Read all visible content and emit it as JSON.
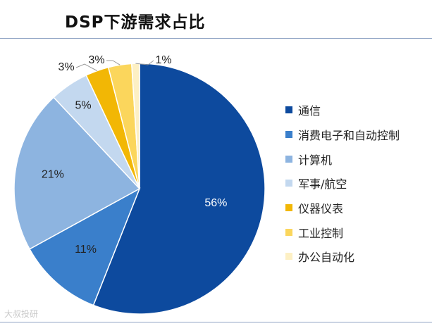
{
  "chart_data": {
    "type": "pie",
    "title": "DSP下游需求占比",
    "categories": [
      "通信",
      "消费电子和自动控制",
      "计算机",
      "军事/航空",
      "仪器仪表",
      "工业控制",
      "办公自动化"
    ],
    "values": [
      56,
      11,
      21,
      5,
      3,
      3,
      1
    ],
    "value_labels": [
      "56%",
      "11%",
      "21%",
      "5%",
      "3%",
      "3%",
      "1%"
    ],
    "colors": [
      "#0d4a9e",
      "#3a7fcb",
      "#8db4e0",
      "#c3d8ef",
      "#f2b705",
      "#fbd65c",
      "#fdf0c4"
    ],
    "start_angle_deg": 90,
    "direction": "clockwise",
    "legend_position": "right"
  },
  "watermark": "大叔投研"
}
